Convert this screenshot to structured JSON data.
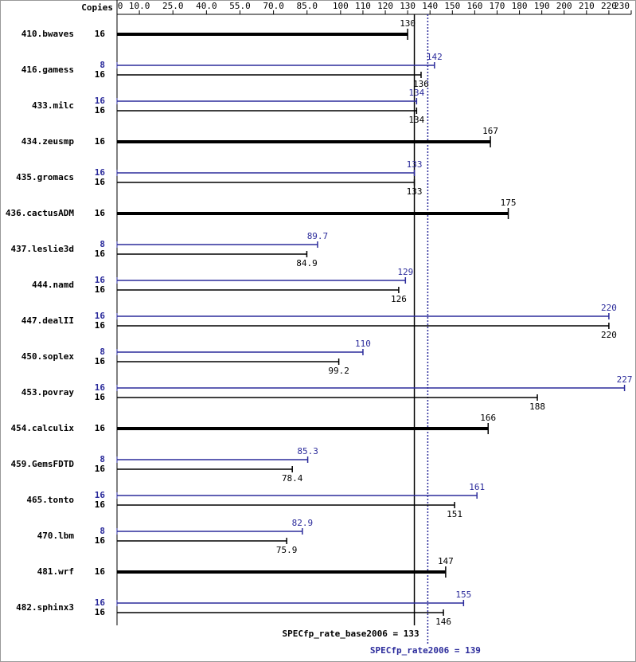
{
  "chart_data": {
    "type": "bar",
    "orientation": "horizontal",
    "copies_header": "Copies",
    "categories": [
      "410.bwaves",
      "416.gamess",
      "433.milc",
      "434.zeusmp",
      "435.gromacs",
      "436.cactusADM",
      "437.leslie3d",
      "444.namd",
      "447.dealII",
      "450.soplex",
      "453.povray",
      "454.calculix",
      "459.GemsFDTD",
      "465.tonto",
      "470.lbm",
      "481.wrf",
      "482.sphinx3"
    ],
    "series": [
      {
        "color": "#000000",
        "copies": [
          16,
          16,
          16,
          16,
          16,
          16,
          16,
          16,
          16,
          16,
          16,
          16,
          16,
          16,
          16,
          16,
          16
        ],
        "values": [
          130,
          136,
          134,
          167,
          133,
          175,
          84.9,
          126,
          220,
          99.2,
          188,
          166,
          78.4,
          151,
          75.9,
          147,
          146
        ]
      },
      {
        "color": "#2b2b9b",
        "copies": [
          null,
          8,
          16,
          null,
          16,
          null,
          8,
          16,
          16,
          8,
          16,
          null,
          8,
          16,
          8,
          null,
          16
        ],
        "values": [
          null,
          142,
          134,
          null,
          133,
          null,
          89.7,
          129,
          220,
          110,
          227,
          null,
          85.3,
          161,
          82.9,
          null,
          155
        ]
      }
    ],
    "xlim": [
      0,
      230
    ],
    "xticks": [
      0,
      {
        "value": 10,
        "label": "10.0"
      },
      {
        "value": 25,
        "label": "25.0"
      },
      {
        "value": 40,
        "label": "40.0"
      },
      {
        "value": 55,
        "label": "55.0"
      },
      {
        "value": 70,
        "label": "70.0"
      },
      {
        "value": 85,
        "label": "85.0"
      },
      100,
      110,
      120,
      130,
      140,
      150,
      160,
      170,
      180,
      190,
      200,
      210,
      220,
      230
    ],
    "reference_lines": [
      {
        "value": 133,
        "label": "SPECfp_rate_base2006 = 133",
        "color": "#000000",
        "style": "solid"
      },
      {
        "value": 139,
        "label": "SPECfp_rate2006 = 139",
        "color": "#2b2b9b",
        "style": "dotted"
      }
    ]
  }
}
